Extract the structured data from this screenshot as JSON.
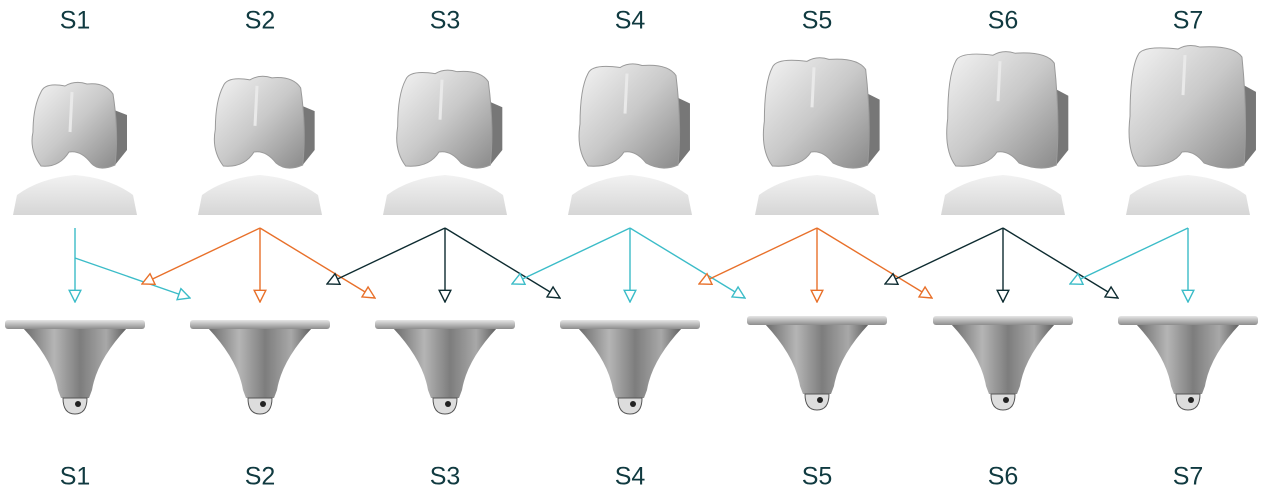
{
  "top_labels": [
    "S1",
    "S2",
    "S3",
    "S4",
    "S5",
    "S6",
    "S7"
  ],
  "bottom_labels": [
    "S1",
    "S2",
    "S3",
    "S4",
    "S5",
    "S6",
    "S7"
  ]
}
